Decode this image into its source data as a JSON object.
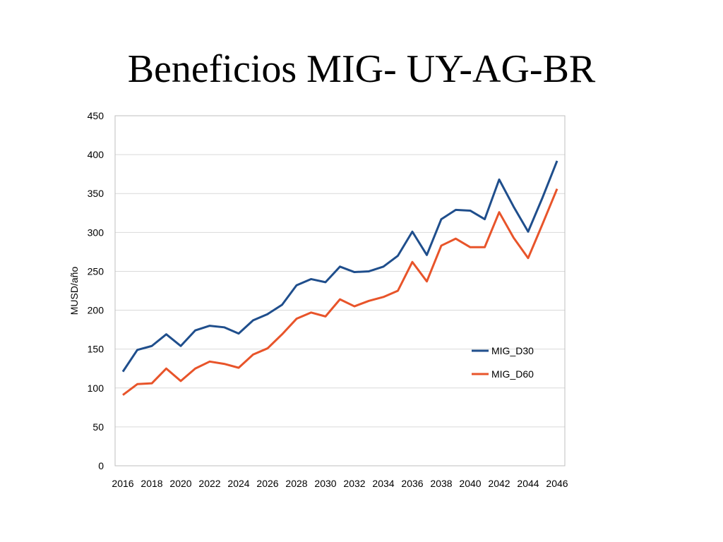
{
  "slide": {
    "title": "Beneficios MIG- UY-AG-BR"
  },
  "chart_data": {
    "type": "line",
    "title": "",
    "xlabel": "",
    "ylabel": "MUSD/año",
    "ylim": [
      0,
      450
    ],
    "yticks": [
      "0",
      "50",
      "100",
      "150",
      "200",
      "250",
      "300",
      "350",
      "400",
      "450"
    ],
    "xticks": [
      "2016",
      "2018",
      "2020",
      "2022",
      "2024",
      "2026",
      "2028",
      "2030",
      "2032",
      "2034",
      "2036",
      "2038",
      "2040",
      "2042",
      "2044",
      "2046"
    ],
    "grid": true,
    "legend_position": "right",
    "x": [
      2016,
      2017,
      2018,
      2019,
      2020,
      2021,
      2022,
      2023,
      2024,
      2025,
      2026,
      2027,
      2028,
      2029,
      2030,
      2031,
      2032,
      2033,
      2034,
      2035,
      2036,
      2037,
      2038,
      2039,
      2040,
      2041,
      2042,
      2043,
      2044,
      2045,
      2046
    ],
    "series": [
      {
        "name": "MIG_D30",
        "color": "#1f4e8c",
        "values": [
          121,
          149,
          154,
          169,
          154,
          174,
          180,
          178,
          170,
          187,
          195,
          207,
          232,
          240,
          236,
          256,
          249,
          250,
          256,
          270,
          301,
          271,
          317,
          329,
          328,
          317,
          368,
          333,
          301,
          345,
          392
        ]
      },
      {
        "name": "MIG_D60",
        "color": "#e8542a",
        "values": [
          91,
          105,
          106,
          125,
          109,
          125,
          134,
          131,
          126,
          143,
          151,
          169,
          189,
          197,
          192,
          214,
          205,
          212,
          217,
          225,
          262,
          237,
          283,
          292,
          281,
          281,
          326,
          293,
          267,
          311,
          356
        ]
      }
    ]
  }
}
